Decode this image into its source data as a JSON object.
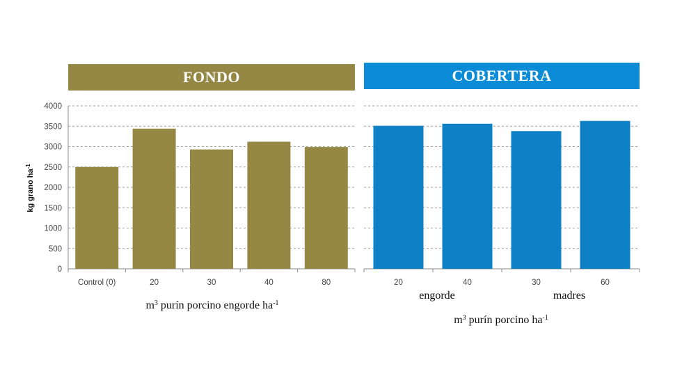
{
  "banners": {
    "left": "FONDO",
    "right": "COBERTERA"
  },
  "chart_data": [
    {
      "type": "bar",
      "title": "FONDO",
      "ylabel": "kg grano ha⁻¹",
      "xlabel": "m³ purín porcino  engorde  ha⁻¹",
      "categories": [
        "Control (0)",
        "20",
        "30",
        "40",
        "80"
      ],
      "values": [
        2500,
        3440,
        2930,
        3120,
        2990
      ],
      "ylim": [
        0,
        4000
      ],
      "yticks": [
        "0",
        "500",
        "1000",
        "1500",
        "2000",
        "2500",
        "3000",
        "3500",
        "4000"
      ],
      "grid": true,
      "color": "#958845"
    },
    {
      "type": "bar",
      "title": "COBERTERA",
      "xlabel": "m³ purín porcino  ha⁻¹",
      "group_labels": [
        "engorde",
        "madres"
      ],
      "categories": [
        "20",
        "40",
        "30",
        "60"
      ],
      "values": [
        3510,
        3560,
        3380,
        3630
      ],
      "ylim": [
        0,
        4000
      ],
      "grid": true,
      "color": "#0d80c6"
    }
  ]
}
